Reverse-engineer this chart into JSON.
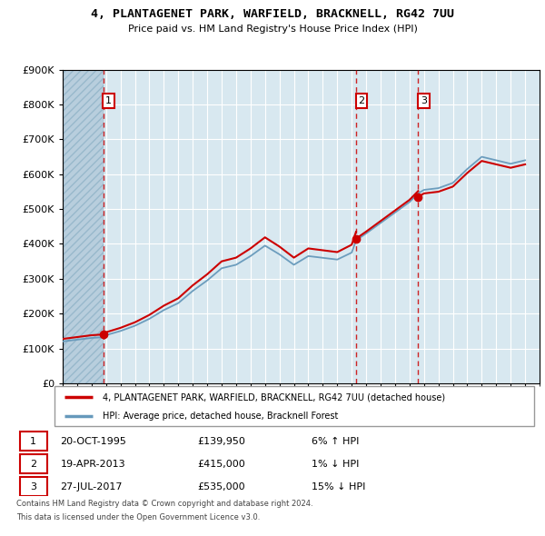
{
  "title": "4, PLANTAGENET PARK, WARFIELD, BRACKNELL, RG42 7UU",
  "subtitle": "Price paid vs. HM Land Registry's House Price Index (HPI)",
  "sale_points": [
    {
      "date_num": 1995.8,
      "price": 139950,
      "label": "1"
    },
    {
      "date_num": 2013.3,
      "price": 415000,
      "label": "2"
    },
    {
      "date_num": 2017.6,
      "price": 535000,
      "label": "3"
    }
  ],
  "sale_dates": [
    "20-OCT-1995",
    "19-APR-2013",
    "27-JUL-2017"
  ],
  "sale_prices": [
    "£139,950",
    "£415,000",
    "£535,000"
  ],
  "sale_hpi": [
    "6% ↑ HPI",
    "1% ↓ HPI",
    "15% ↓ HPI"
  ],
  "legend_property": "4, PLANTAGENET PARK, WARFIELD, BRACKNELL, RG42 7UU (detached house)",
  "legend_hpi": "HPI: Average price, detached house, Bracknell Forest",
  "footer1": "Contains HM Land Registry data © Crown copyright and database right 2024.",
  "footer2": "This data is licensed under the Open Government Licence v3.0.",
  "red_color": "#cc0000",
  "blue_color": "#6699bb",
  "hatch_region_end": 1995.8,
  "xmin": 1993,
  "xmax": 2026,
  "ymin": 0,
  "ymax": 900000,
  "plot_bg": "#d8e8f0",
  "years_hpi": [
    1993,
    1994,
    1995,
    1995.8,
    1996,
    1997,
    1998,
    1999,
    2000,
    2001,
    2002,
    2003,
    2004,
    2005,
    2006,
    2007,
    2008,
    2009,
    2010,
    2011,
    2012,
    2013,
    2013.3,
    2014,
    2015,
    2016,
    2017,
    2017.6,
    2018,
    2019,
    2020,
    2021,
    2022,
    2023,
    2024,
    2025
  ],
  "hpi_values": [
    120000,
    125000,
    130000,
    132000,
    138000,
    150000,
    165000,
    185000,
    210000,
    230000,
    265000,
    295000,
    330000,
    340000,
    365000,
    395000,
    370000,
    340000,
    365000,
    360000,
    355000,
    375000,
    410000,
    430000,
    460000,
    490000,
    520000,
    545000,
    555000,
    560000,
    575000,
    615000,
    650000,
    640000,
    630000,
    640000
  ]
}
